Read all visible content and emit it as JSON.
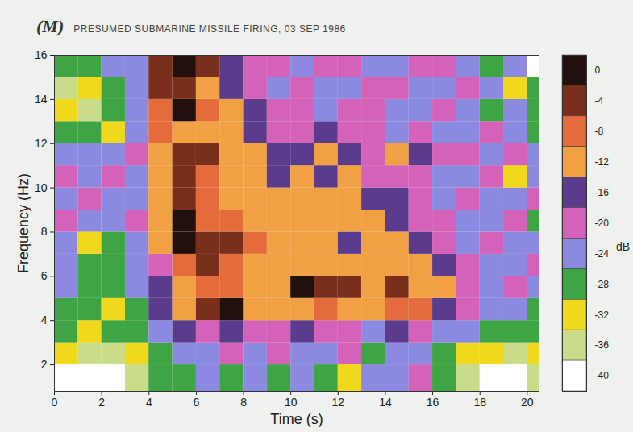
{
  "chart_data": {
    "type": "heatmap",
    "panel_label": "(M)",
    "title": "PRESUMED SUBMARINE MISSILE FIRING, 03 SEP 1986",
    "xlabel": "Time (s)",
    "ylabel": "Frequency (Hz)",
    "xlim": [
      0,
      20.5
    ],
    "ylim": [
      0.8,
      16
    ],
    "xticks": [
      0,
      2,
      4,
      6,
      8,
      10,
      12,
      14,
      16,
      18,
      20
    ],
    "yticks": [
      2,
      4,
      6,
      8,
      10,
      12,
      14,
      16
    ],
    "x_edges": [
      0,
      1,
      2,
      3,
      4,
      5,
      6,
      7,
      8,
      9,
      10,
      11,
      12,
      13,
      14,
      15,
      16,
      17,
      18,
      19,
      20,
      20.5
    ],
    "y_edges": [
      0.8,
      2,
      3,
      4,
      5,
      6,
      7,
      8,
      9,
      10,
      11,
      12,
      13,
      14,
      15,
      16
    ],
    "values": [
      [
        -40,
        -40,
        -41,
        -36,
        -28,
        -30,
        -26,
        -30,
        -24,
        -28,
        -26,
        -30,
        -32,
        -24,
        -26,
        -22,
        -28,
        -36,
        -42,
        -42,
        -36
      ],
      [
        -34,
        -36,
        -38,
        -34,
        -28,
        -24,
        -26,
        -22,
        -24,
        -20,
        -26,
        -24,
        -22,
        -28,
        -24,
        -26,
        -30,
        -32,
        -34,
        -36,
        -34
      ],
      [
        -30,
        -32,
        -28,
        -30,
        -26,
        -18,
        -20,
        -18,
        -22,
        -20,
        -18,
        -22,
        -20,
        -24,
        -18,
        -22,
        -26,
        -24,
        -30,
        -28,
        -30
      ],
      [
        -28,
        -30,
        -32,
        -28,
        -18,
        -12,
        -6,
        -3,
        -14,
        -14,
        -12,
        -10,
        -13,
        -14,
        -8,
        -10,
        -18,
        -22,
        -24,
        -26,
        -28
      ],
      [
        -26,
        -30,
        -28,
        -26,
        -16,
        -12,
        -8,
        -10,
        -13,
        -12,
        -3,
        -6,
        -5,
        -14,
        -6,
        -14,
        -14,
        -20,
        -24,
        -22,
        -26
      ],
      [
        -24,
        -28,
        -30,
        -24,
        -20,
        -10,
        -6,
        -8,
        -12,
        -14,
        -12,
        -13,
        -14,
        -12,
        -14,
        -15,
        -18,
        -22,
        -26,
        -24,
        -22
      ],
      [
        -26,
        -32,
        -28,
        -26,
        -14,
        -3,
        -4,
        -5,
        -10,
        -12,
        -14,
        -13,
        -16,
        -14,
        -15,
        -18,
        -20,
        -24,
        -22,
        -26,
        -24
      ],
      [
        -22,
        -26,
        -24,
        -20,
        -15,
        -3,
        -9,
        -8,
        -14,
        -13,
        -12,
        -14,
        -15,
        -12,
        -16,
        -20,
        -22,
        -26,
        -24,
        -22,
        -28
      ],
      [
        -24,
        -22,
        -26,
        -24,
        -14,
        -6,
        -10,
        -13,
        -14,
        -12,
        -15,
        -13,
        -14,
        -16,
        -18,
        -22,
        -24,
        -20,
        -24,
        -26,
        -22
      ],
      [
        -20,
        -24,
        -22,
        -26,
        -13,
        -6,
        -10,
        -12,
        -14,
        -16,
        -13,
        -18,
        -14,
        -20,
        -22,
        -20,
        -24,
        -26,
        -22,
        -32,
        -24
      ],
      [
        -24,
        -26,
        -24,
        -22,
        -12,
        -6,
        -7,
        -14,
        -12,
        -16,
        -18,
        -14,
        -18,
        -20,
        -14,
        -16,
        -22,
        -20,
        -24,
        -22,
        -26
      ],
      [
        -30,
        -28,
        -34,
        -26,
        -10,
        -12,
        -14,
        -13,
        -18,
        -20,
        -22,
        -18,
        -22,
        -20,
        -24,
        -22,
        -26,
        -24,
        -22,
        -26,
        -28
      ],
      [
        -32,
        -36,
        -28,
        -24,
        -8,
        -2,
        -10,
        -14,
        -16,
        -20,
        -22,
        -24,
        -22,
        -20,
        -26,
        -24,
        -22,
        -26,
        -28,
        -24,
        -30
      ],
      [
        -36,
        -34,
        -30,
        -26,
        -6,
        -6,
        -12,
        -16,
        -22,
        -24,
        -20,
        -26,
        -24,
        -22,
        -20,
        -26,
        -24,
        -22,
        -26,
        -32,
        -28
      ],
      [
        -30,
        -28,
        -24,
        -26,
        -6,
        -1,
        -6,
        -18,
        -20,
        -22,
        -24,
        -20,
        -22,
        -26,
        -24,
        -22,
        -20,
        -24,
        -28,
        -26,
        -40
      ]
    ],
    "colorbar": {
      "label": "dB",
      "ticks": [
        0,
        -4,
        -8,
        -12,
        -16,
        -20,
        -24,
        -28,
        -32,
        -36,
        -40
      ],
      "colors": [
        "#21100b",
        "#7a2e1c",
        "#e46c3c",
        "#f2a044",
        "#5b3c8c",
        "#d462b8",
        "#8c8ae0",
        "#3ea444",
        "#f0d81c",
        "#c8dc8a",
        "#ffffff"
      ]
    }
  }
}
